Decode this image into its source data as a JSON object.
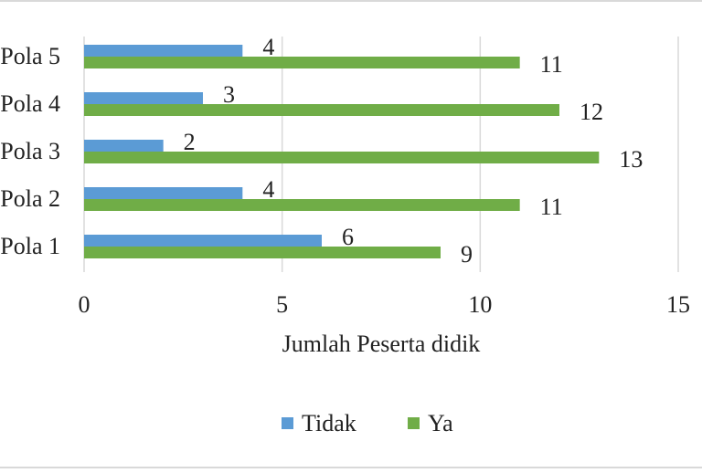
{
  "chart_data": {
    "type": "bar",
    "orientation": "horizontal",
    "categories": [
      "Pola 1",
      "Pola 2",
      "Pola 3",
      "Pola 4",
      "Pola 5"
    ],
    "series": [
      {
        "name": "Tidak",
        "values": [
          6,
          4,
          2,
          3,
          4
        ],
        "color": "#5b9bd5"
      },
      {
        "name": "Ya",
        "values": [
          9,
          11,
          13,
          12,
          11
        ],
        "color": "#70ad47"
      }
    ],
    "title": "",
    "xlabel": "Jumlah Peserta didik",
    "ylabel": "",
    "xlim": [
      0,
      15
    ],
    "xticks": [
      "0",
      "5",
      "10",
      "15"
    ],
    "grid": true,
    "data_labels": true,
    "legend_position": "bottom"
  }
}
